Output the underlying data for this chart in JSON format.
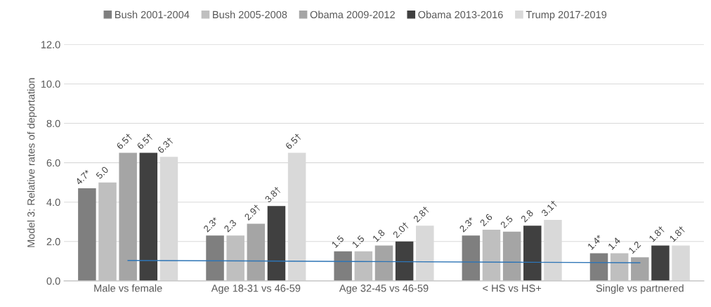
{
  "chart_data": {
    "type": "bar",
    "ylabel": "Model 3: Relative rates of deportation",
    "categories": [
      "Male vs female",
      "Age 18-31 vs 46-59",
      "Age 32-45 vs 46-59",
      "< HS vs HS+",
      "Single vs partnered"
    ],
    "series": [
      {
        "name": "Bush 2001-2004",
        "color": "#7f7f7f",
        "values": [
          4.7,
          2.3,
          1.5,
          2.3,
          1.4
        ],
        "value_labels": [
          "4.7*",
          "2.3*",
          "1.5",
          "2.3*",
          "1.4*"
        ]
      },
      {
        "name": "Bush 2005-2008",
        "color": "#bfbfbf",
        "values": [
          5.0,
          2.3,
          1.5,
          2.6,
          1.4
        ],
        "value_labels": [
          "5.0",
          "2.3",
          "1.5",
          "2.6",
          "1.4"
        ]
      },
      {
        "name": "Obama 2009-2012",
        "color": "#a5a5a5",
        "values": [
          6.5,
          2.9,
          1.8,
          2.5,
          1.2
        ],
        "value_labels": [
          "6.5†",
          "2.9†",
          "1.8",
          "2.5",
          "1.2"
        ]
      },
      {
        "name": "Obama 2013-2016",
        "color": "#404040",
        "values": [
          6.5,
          3.8,
          2.0,
          2.8,
          1.8
        ],
        "value_labels": [
          "6.5†",
          "3.8†",
          "2.0†",
          "2.8",
          "1.8†"
        ]
      },
      {
        "name": "Trump 2017-2019",
        "color": "#d9d9d9",
        "values": [
          6.3,
          6.5,
          2.8,
          3.1,
          1.8
        ],
        "value_labels": [
          "6.3†",
          "6.5†",
          "2.8†",
          "3.1†",
          "1.8†"
        ]
      },
      {
        "type": "line",
        "color": "#2e75b6",
        "values": [
          1.04,
          1.01,
          0.98,
          0.95,
          0.92
        ]
      }
    ],
    "ylim": [
      0,
      12
    ],
    "yticks": [
      {
        "value": 0,
        "label": "0.0"
      },
      {
        "value": 2,
        "label": "2.0"
      },
      {
        "value": 4,
        "label": "4.0"
      },
      {
        "value": 6,
        "label": "6.0"
      },
      {
        "value": 8,
        "label": "8.0"
      },
      {
        "value": 10,
        "label": "10.0"
      },
      {
        "value": 12,
        "label": "12.0"
      }
    ],
    "grid": "y",
    "legend": "top"
  }
}
